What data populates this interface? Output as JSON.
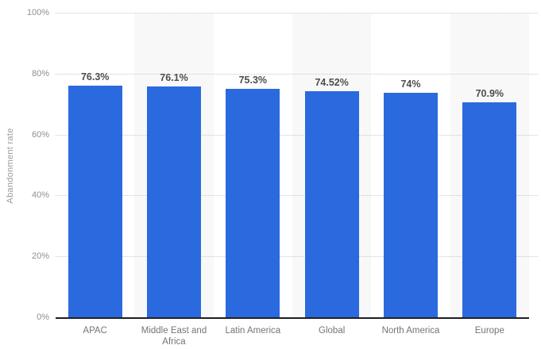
{
  "chart_data": {
    "type": "bar",
    "title": "",
    "xlabel": "",
    "ylabel": "Abandonment rate",
    "categories": [
      "APAC",
      "Middle East and Africa",
      "Latin America",
      "Global",
      "North America",
      "Europe"
    ],
    "values": [
      76.3,
      76.1,
      75.3,
      74.52,
      74,
      70.9
    ],
    "value_labels": [
      "76.3%",
      "76.1%",
      "75.3%",
      "74.52%",
      "74%",
      "70.9%"
    ],
    "ytick_values": [
      0,
      20,
      40,
      60,
      80,
      100
    ],
    "ytick_labels": [
      "0%",
      "20%",
      "40%",
      "60%",
      "80%",
      "100%"
    ],
    "ylim": [
      0,
      100
    ],
    "grid": "horizontal-dotted",
    "legend": "none",
    "colors": {
      "bar": "#2a6ade",
      "alt_column_band": "#f8f8f9",
      "gridline": "#c9c9c9",
      "baseline": "#1f1f1f",
      "tick_text": "#8f8f8f",
      "category_text": "#757575",
      "value_text": "#4d4d4d",
      "axis_title_text": "#9b9b9b"
    }
  }
}
